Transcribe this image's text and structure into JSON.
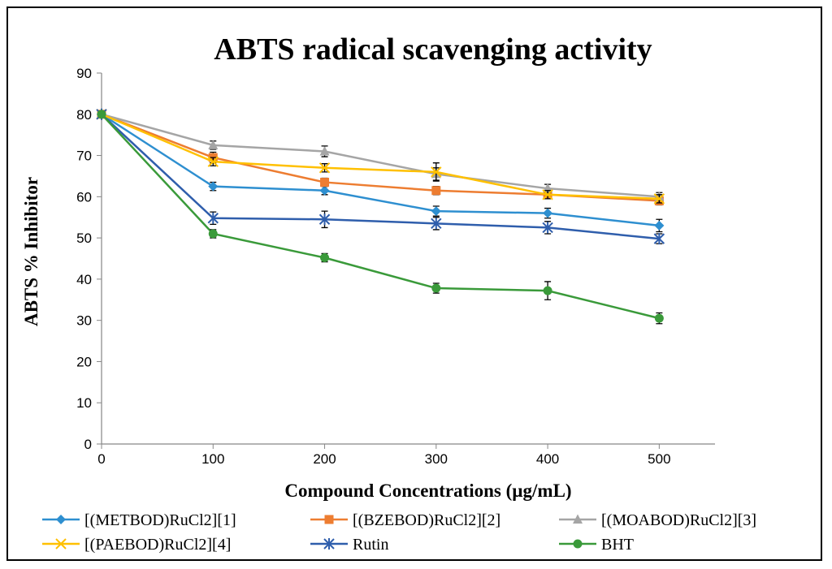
{
  "chart_data": {
    "type": "line",
    "title": "ABTS radical scavenging activity",
    "xlabel": "Compound  Concentrations (µg/mL)",
    "ylabel": "ABTS % Inhibitor",
    "x": [
      0,
      100,
      200,
      300,
      400,
      500
    ],
    "xlim": [
      0,
      550
    ],
    "ylim": [
      0,
      90
    ],
    "xticks": [
      "0",
      "100",
      "200",
      "300",
      "400",
      "500"
    ],
    "yticks": [
      "0",
      "10",
      "20",
      "30",
      "40",
      "50",
      "60",
      "70",
      "80",
      "90"
    ],
    "grid": false,
    "legend_position": "bottom",
    "series": [
      {
        "name": "[(METBOD)RuCl2][1]",
        "color": "#2e8fd0",
        "marker": "diamond",
        "values": [
          80,
          62.5,
          61.5,
          56.5,
          56,
          53
        ],
        "errors": [
          0,
          1,
          1,
          1.2,
          1.2,
          1.5
        ]
      },
      {
        "name": "[(BZEBOD)RuCl2][2]",
        "color": "#ed7d31",
        "marker": "square",
        "values": [
          80,
          69.5,
          63.5,
          61.5,
          60.5,
          59
        ],
        "errors": [
          0,
          1.3,
          1,
          1,
          1,
          1
        ]
      },
      {
        "name": "[(MOABOD)RuCl2][3]",
        "color": "#a5a5a5",
        "marker": "triangle",
        "values": [
          80,
          72.5,
          71,
          65.5,
          62,
          60
        ],
        "errors": [
          0,
          1,
          1.3,
          1.5,
          1,
          1
        ]
      },
      {
        "name": "[(PAEBOD)RuCl2][4]",
        "color": "#ffc000",
        "marker": "x",
        "values": [
          80,
          68.5,
          67,
          66,
          60.5,
          59.5
        ],
        "errors": [
          0,
          1,
          1,
          2.2,
          1,
          1
        ]
      },
      {
        "name": "Rutin",
        "color": "#2f5eac",
        "marker": "star",
        "values": [
          80,
          54.8,
          54.5,
          53.5,
          52.5,
          49.8
        ],
        "errors": [
          0,
          1.5,
          2,
          1.5,
          1.5,
          1.2
        ]
      },
      {
        "name": "BHT",
        "color": "#3a9a3a",
        "marker": "circle",
        "values": [
          80,
          51,
          45.2,
          37.8,
          37.2,
          30.5
        ],
        "errors": [
          0,
          1,
          1,
          1.2,
          2.2,
          1.3
        ]
      }
    ]
  }
}
